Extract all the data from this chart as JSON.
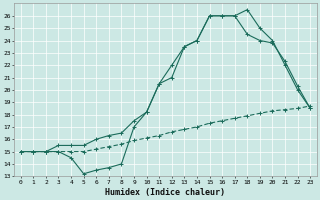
{
  "xlabel": "Humidex (Indice chaleur)",
  "bg_color": "#cce8e4",
  "line_color": "#1a6b5a",
  "xlim": [
    -0.5,
    23.5
  ],
  "ylim": [
    13,
    27
  ],
  "yticks": [
    13,
    14,
    15,
    16,
    17,
    18,
    19,
    20,
    21,
    22,
    23,
    24,
    25,
    26
  ],
  "xticks": [
    0,
    1,
    2,
    3,
    4,
    5,
    6,
    7,
    8,
    9,
    10,
    11,
    12,
    13,
    14,
    15,
    16,
    17,
    18,
    19,
    20,
    21,
    22,
    23
  ],
  "line1_x": [
    0,
    1,
    2,
    3,
    4,
    5,
    6,
    7,
    8,
    9,
    10,
    11,
    12,
    13,
    14,
    15,
    16,
    17,
    18,
    19,
    20,
    21,
    22,
    23
  ],
  "line1_y": [
    15.0,
    15.0,
    15.0,
    15.0,
    15.0,
    15.0,
    15.2,
    15.4,
    15.6,
    15.9,
    16.1,
    16.3,
    16.6,
    16.8,
    17.0,
    17.3,
    17.5,
    17.7,
    17.9,
    18.1,
    18.3,
    18.4,
    18.5,
    18.7
  ],
  "line2_x": [
    0,
    1,
    2,
    3,
    4,
    5,
    6,
    7,
    8,
    9,
    10,
    11,
    12,
    13,
    14,
    15,
    16,
    17,
    18,
    19,
    20,
    21,
    22,
    23
  ],
  "line2_y": [
    15.0,
    15.0,
    15.0,
    15.5,
    15.5,
    15.5,
    16.0,
    16.3,
    16.5,
    17.5,
    18.2,
    20.5,
    22.0,
    23.5,
    24.0,
    26.0,
    26.0,
    26.0,
    24.5,
    24.0,
    23.8,
    22.3,
    20.3,
    18.5
  ],
  "line3_x": [
    0,
    1,
    2,
    3,
    4,
    5,
    6,
    7,
    8,
    9,
    10,
    11,
    12,
    13,
    14,
    15,
    16,
    17,
    18,
    19,
    20,
    21,
    22,
    23
  ],
  "line3_y": [
    15.0,
    15.0,
    15.0,
    15.0,
    14.5,
    13.2,
    13.5,
    13.7,
    14.0,
    17.0,
    18.2,
    20.5,
    21.0,
    23.5,
    24.0,
    26.0,
    26.0,
    26.0,
    26.5,
    25.0,
    24.0,
    22.0,
    20.0,
    18.5
  ]
}
